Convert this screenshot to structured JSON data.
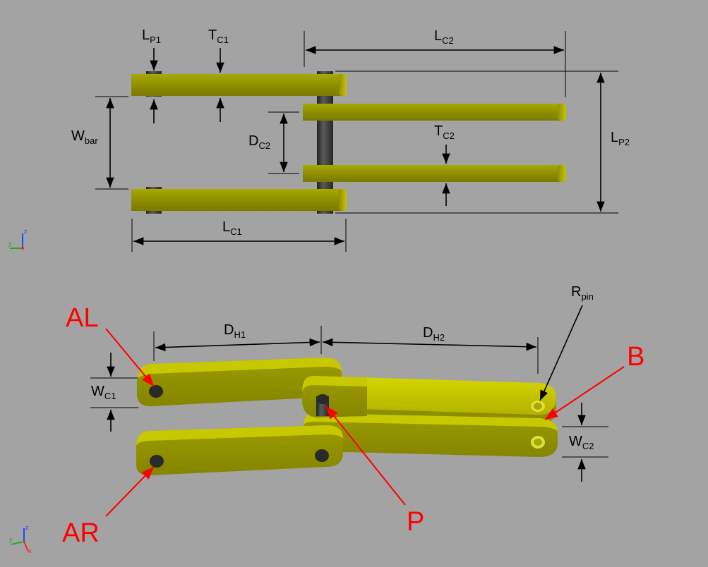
{
  "labels": {
    "lp1": {
      "main": "L",
      "sub": "P1"
    },
    "tc1": {
      "main": "T",
      "sub": "C1"
    },
    "lc2": {
      "main": "L",
      "sub": "C2"
    },
    "dc2": {
      "main": "D",
      "sub": "C2"
    },
    "tc2": {
      "main": "T",
      "sub": "C2"
    },
    "lp2": {
      "main": "L",
      "sub": "P2"
    },
    "wbar": {
      "main": "W",
      "sub": "bar"
    },
    "lc1": {
      "main": "L",
      "sub": "C1"
    },
    "dh1": {
      "main": "D",
      "sub": "H1"
    },
    "dh2": {
      "main": "D",
      "sub": "H2"
    },
    "rpin": {
      "main": "R",
      "sub": "pin"
    },
    "wc1": {
      "main": "W",
      "sub": "C1"
    },
    "wc2": {
      "main": "W",
      "sub": "C2"
    }
  },
  "points": {
    "al": "AL",
    "ar": "AR",
    "b": "B",
    "p": "P"
  },
  "axes": {
    "z": "z",
    "y": "y",
    "x": "x"
  },
  "colors": {
    "background": "#a3a3a3",
    "link": "#8c8c00",
    "link_light": "#c9c900",
    "pin": "#3a3a3a",
    "annotation": "#ff0000"
  }
}
